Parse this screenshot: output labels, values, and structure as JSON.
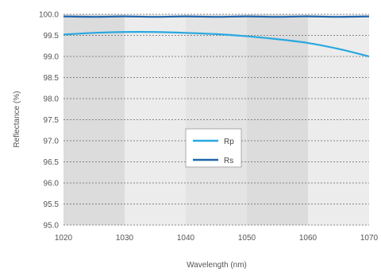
{
  "chart_data": {
    "type": "line",
    "xlabel": "Wavelength (nm)",
    "ylabel": "Reflectance (%)",
    "xlim": [
      1020,
      1070
    ],
    "ylim": [
      95.0,
      100.0
    ],
    "x_ticks": [
      "1020",
      "1030",
      "1040",
      "1050",
      "1060",
      "1070"
    ],
    "y_ticks": [
      "95.0",
      "95.5",
      "96.0",
      "96.5",
      "97.0",
      "97.5",
      "98.0",
      "98.5",
      "99.0",
      "99.5",
      "100.0"
    ],
    "grid": "horizontal dashed",
    "legend_position": "center",
    "series": [
      {
        "name": "Rp",
        "color": "#29a8e0",
        "x": [
          1020,
          1025,
          1030,
          1035,
          1040,
          1045,
          1050,
          1055,
          1060,
          1065,
          1070
        ],
        "y": [
          99.52,
          99.56,
          99.58,
          99.58,
          99.56,
          99.53,
          99.48,
          99.41,
          99.32,
          99.18,
          99.0
        ]
      },
      {
        "name": "Rs",
        "color": "#2166ac",
        "x": [
          1020,
          1025,
          1030,
          1035,
          1040,
          1045,
          1050,
          1055,
          1060,
          1065,
          1070
        ],
        "y": [
          99.95,
          99.94,
          99.95,
          99.94,
          99.95,
          99.94,
          99.95,
          99.94,
          99.95,
          99.94,
          99.95
        ]
      }
    ]
  }
}
